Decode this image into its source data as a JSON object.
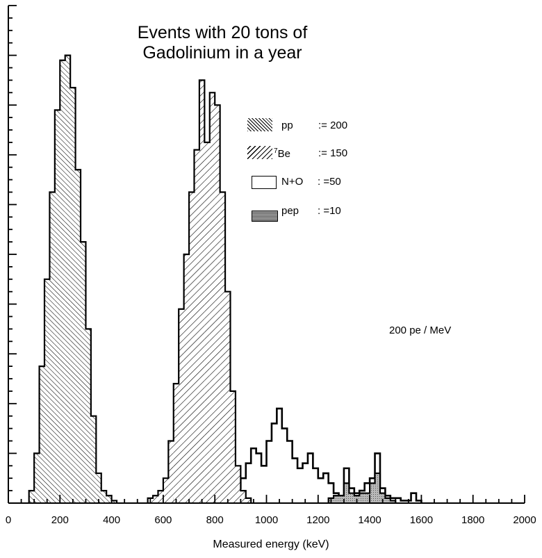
{
  "chart_data": {
    "type": "bar",
    "title_lines": [
      "Events with 20 tons of",
      "Gadolinium in a year"
    ],
    "xlabel": "Measured energy (keV)",
    "ylabel": "",
    "xlim": [
      0,
      2000
    ],
    "ylim": [
      0,
      200
    ],
    "xticks": [
      "0",
      "200",
      "400",
      "600",
      "800",
      "1000",
      "1200",
      "1400",
      "1600",
      "1800",
      "2000"
    ],
    "annotation": "200 pe / MeV",
    "bin_width_keV": 20,
    "legend": [
      {
        "key": "pp",
        "label": "pp",
        "value_text": ":= 200",
        "fill": "back-hatch"
      },
      {
        "key": "be7",
        "label_sup": "7",
        "label": "Be",
        "value_text": ":= 150",
        "fill": "forward-hatch"
      },
      {
        "key": "no",
        "label": "N+O",
        "value_text": ": =50",
        "fill": "white"
      },
      {
        "key": "pep",
        "label": "pep",
        "value_text": ": =10",
        "fill": "gray"
      }
    ],
    "series": [
      {
        "name": "pp",
        "bins": [
          [
            80,
            5
          ],
          [
            100,
            20
          ],
          [
            120,
            55
          ],
          [
            140,
            90
          ],
          [
            160,
            125
          ],
          [
            180,
            158
          ],
          [
            200,
            178
          ],
          [
            220,
            180
          ],
          [
            240,
            167
          ],
          [
            260,
            134
          ],
          [
            280,
            105
          ],
          [
            300,
            70
          ],
          [
            320,
            35
          ],
          [
            340,
            12
          ],
          [
            360,
            5
          ],
          [
            380,
            3
          ],
          [
            400,
            1
          ]
        ]
      },
      {
        "name": "7Be",
        "bins": [
          [
            540,
            2
          ],
          [
            560,
            3
          ],
          [
            580,
            5
          ],
          [
            600,
            10
          ],
          [
            620,
            25
          ],
          [
            640,
            48
          ],
          [
            660,
            78
          ],
          [
            680,
            100
          ],
          [
            700,
            125
          ],
          [
            720,
            142
          ],
          [
            740,
            170
          ],
          [
            760,
            145
          ],
          [
            780,
            165
          ],
          [
            800,
            160
          ],
          [
            820,
            125
          ],
          [
            840,
            85
          ],
          [
            860,
            45
          ],
          [
            880,
            15
          ],
          [
            900,
            5
          ],
          [
            920,
            2
          ]
        ]
      },
      {
        "name": "N+O",
        "bins": [
          [
            640,
            2
          ],
          [
            660,
            3
          ],
          [
            680,
            3
          ],
          [
            700,
            4
          ],
          [
            720,
            4
          ],
          [
            740,
            4
          ],
          [
            760,
            4
          ],
          [
            780,
            5
          ],
          [
            800,
            5
          ],
          [
            820,
            5
          ],
          [
            840,
            5
          ],
          [
            860,
            5
          ],
          [
            880,
            6
          ],
          [
            900,
            10
          ],
          [
            920,
            16
          ],
          [
            940,
            22
          ],
          [
            960,
            20
          ],
          [
            980,
            15
          ],
          [
            1000,
            25
          ],
          [
            1020,
            32
          ],
          [
            1040,
            38
          ],
          [
            1060,
            30
          ],
          [
            1080,
            25
          ],
          [
            1100,
            18
          ],
          [
            1120,
            14
          ],
          [
            1140,
            16
          ],
          [
            1160,
            20
          ],
          [
            1180,
            14
          ],
          [
            1200,
            10
          ],
          [
            1220,
            12
          ],
          [
            1240,
            8
          ],
          [
            1260,
            4
          ],
          [
            1280,
            3
          ],
          [
            1300,
            14
          ],
          [
            1320,
            6
          ],
          [
            1340,
            4
          ],
          [
            1360,
            5
          ],
          [
            1380,
            8
          ],
          [
            1400,
            10
          ],
          [
            1420,
            20
          ],
          [
            1440,
            6
          ],
          [
            1460,
            3
          ],
          [
            1480,
            2
          ],
          [
            1500,
            2
          ],
          [
            1520,
            1
          ],
          [
            1540,
            1
          ],
          [
            1560,
            4
          ],
          [
            1580,
            1
          ]
        ]
      },
      {
        "name": "pep",
        "bins": [
          [
            1240,
            2
          ],
          [
            1260,
            3
          ],
          [
            1280,
            3
          ],
          [
            1300,
            8
          ],
          [
            1320,
            4
          ],
          [
            1340,
            3
          ],
          [
            1360,
            4
          ],
          [
            1380,
            4
          ],
          [
            1400,
            8
          ],
          [
            1420,
            12
          ],
          [
            1440,
            4
          ],
          [
            1460,
            2
          ],
          [
            1480,
            1
          ]
        ]
      }
    ]
  }
}
